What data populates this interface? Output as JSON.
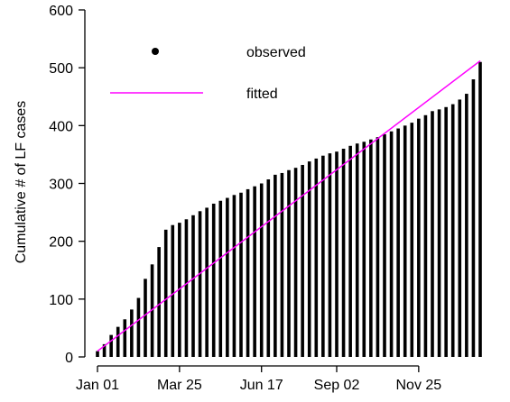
{
  "chart_data": {
    "type": "bar",
    "title": "",
    "xlabel": "",
    "ylabel": "Cumulative # of LF cases",
    "ylim": [
      0,
      600
    ],
    "yticks": [
      0,
      100,
      200,
      300,
      400,
      500,
      600
    ],
    "xtick_labels": [
      "Jan 01",
      "Mar 25",
      "Jun 17",
      "Sep 02",
      "Nov 25"
    ],
    "xtick_bar_index": [
      0,
      12,
      24,
      35,
      47
    ],
    "grid": false,
    "legend": {
      "placement": "top-left",
      "entries": [
        {
          "label": "observed",
          "marker": "point",
          "color": "#000000"
        },
        {
          "label": "fitted",
          "marker": "line",
          "color": "#ff00ff"
        }
      ]
    },
    "series": [
      {
        "name": "observed",
        "kind": "bar",
        "color": "#000000",
        "values": [
          10,
          22,
          38,
          52,
          65,
          82,
          102,
          135,
          160,
          190,
          220,
          228,
          232,
          238,
          245,
          252,
          258,
          265,
          270,
          275,
          280,
          284,
          290,
          295,
          300,
          307,
          315,
          318,
          323,
          327,
          332,
          338,
          343,
          348,
          352,
          355,
          360,
          365,
          369,
          372,
          376,
          380,
          385,
          390,
          395,
          400,
          405,
          412,
          418,
          425,
          428,
          432,
          437,
          445,
          455,
          480,
          510
        ]
      },
      {
        "name": "fitted",
        "kind": "line",
        "color": "#ff00ff",
        "x_index": [
          0,
          56
        ],
        "values": [
          10,
          512
        ]
      }
    ]
  }
}
